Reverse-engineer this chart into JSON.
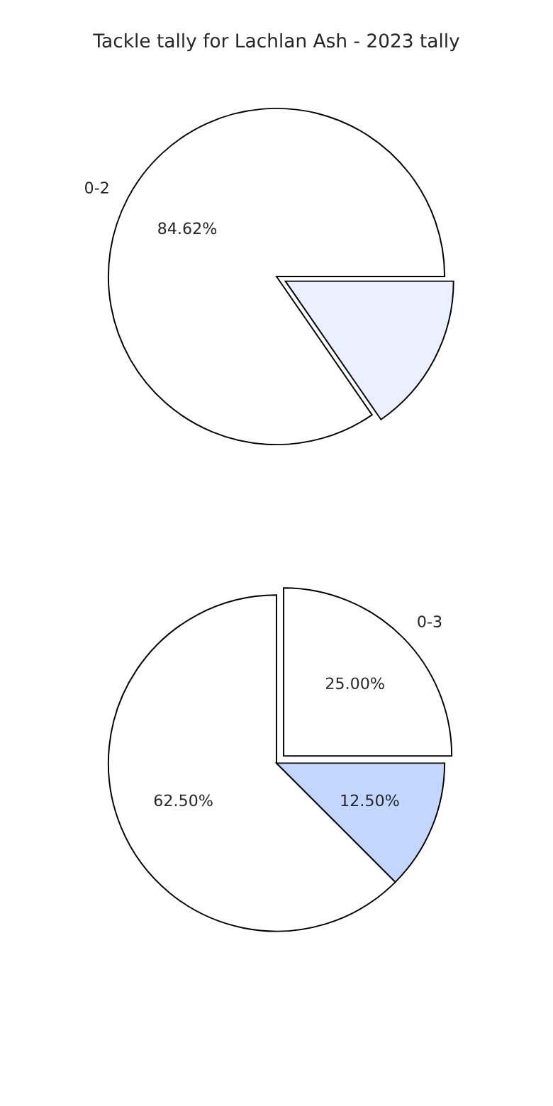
{
  "chart_data": [
    {
      "type": "pie",
      "title": "Tackle tally for Lachlan Ash - 2023 tally",
      "categories": [
        "0-2",
        null
      ],
      "values": [
        84.62,
        15.38
      ],
      "colors": [
        "#ffffff",
        "#eaf0ff"
      ],
      "value_labels": [
        "84.62%",
        null
      ]
    },
    {
      "type": "pie",
      "categories": [
        "0-3",
        null,
        null
      ],
      "values": [
        25.0,
        62.5,
        12.5
      ],
      "colors": [
        "#ffffff",
        "#ffffff",
        "#c2d6ff"
      ],
      "value_labels": [
        "25.00%",
        "62.50%",
        "12.50%"
      ]
    }
  ]
}
